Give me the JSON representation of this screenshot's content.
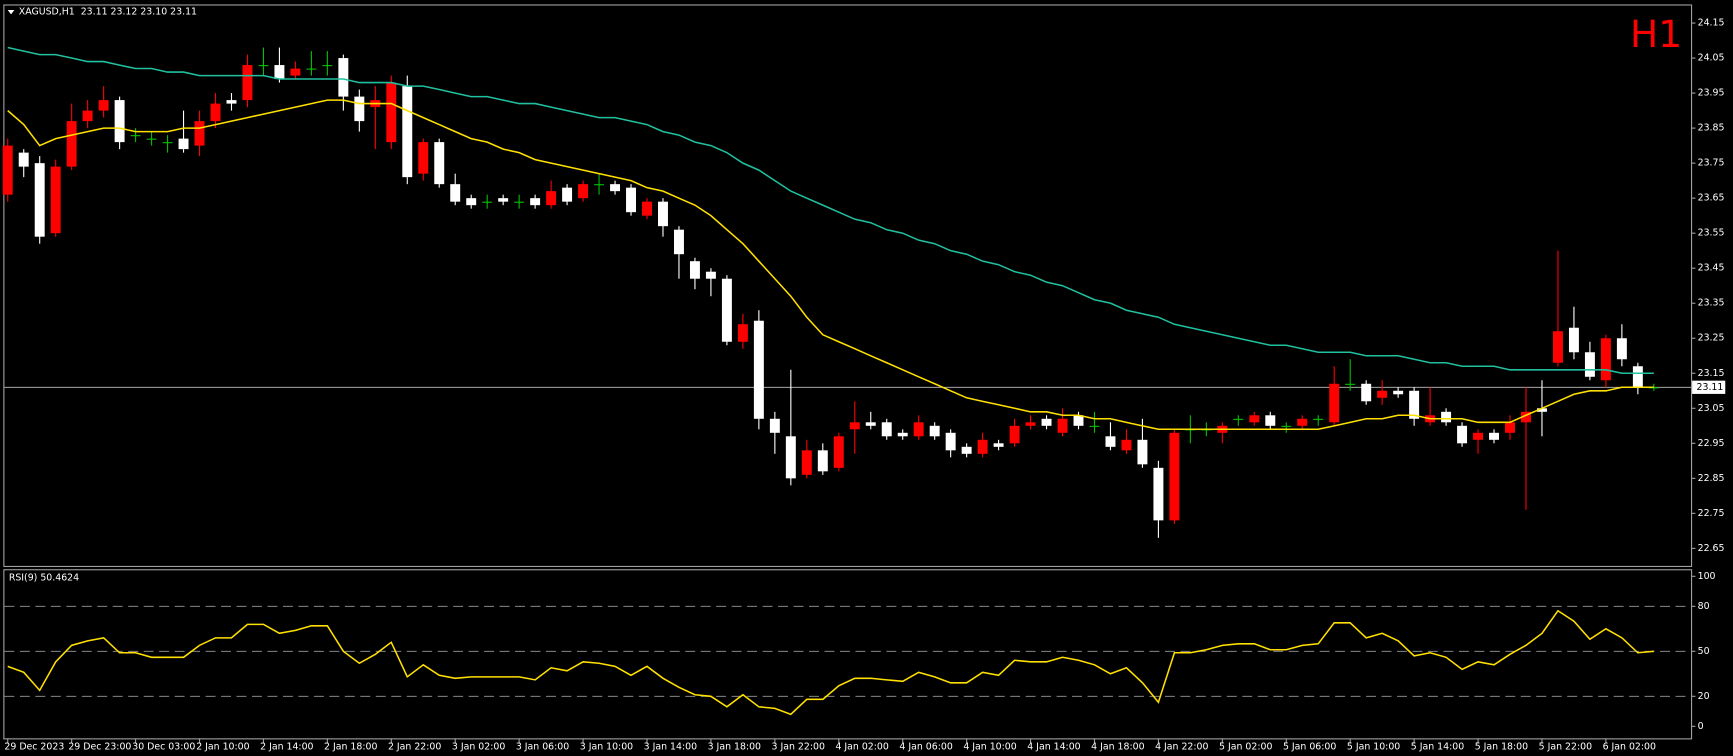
{
  "chart_data": [
    {
      "type": "candlestick",
      "title": "XAGUSD,H1  23.11 23.12 23.10 23.11",
      "label": "H1",
      "categories": [
        "29 Dec 2023",
        null,
        null,
        null,
        "29 Dec 23:00",
        null,
        null,
        null,
        "30 Dec 03:00",
        null,
        null,
        null,
        "2 Jan 10:00",
        null,
        null,
        null,
        "2 Jan 14:00",
        null,
        null,
        null,
        "2 Jan 18:00",
        null,
        null,
        null,
        "2 Jan 22:00",
        null,
        null,
        null,
        "3 Jan 02:00",
        null,
        null,
        null,
        "3 Jan 06:00",
        null,
        null,
        null,
        "3 Jan 10:00",
        null,
        null,
        null,
        "3 Jan 14:00",
        null,
        null,
        null,
        "3 Jan 18:00",
        null,
        null,
        null,
        "3 Jan 22:00",
        null,
        null,
        null,
        "4 Jan 02:00",
        null,
        null,
        null,
        "4 Jan 06:00",
        null,
        null,
        null,
        "4 Jan 10:00",
        null,
        null,
        null,
        "4 Jan 14:00",
        null,
        null,
        null,
        "4 Jan 18:00",
        null,
        null,
        null,
        "4 Jan 22:00",
        null,
        null,
        null,
        "5 Jan 02:00",
        null,
        null,
        null,
        "5 Jan 06:00",
        null,
        null,
        null,
        "5 Jan 10:00",
        null,
        null,
        null,
        "5 Jan 14:00",
        null,
        null,
        null,
        "5 Jan 18:00",
        null,
        null,
        null,
        "5 Jan 22:00",
        null,
        null,
        null,
        "6 Jan 02:00",
        null,
        null,
        null
      ],
      "open": [
        23.66,
        23.78,
        23.75,
        23.55,
        23.74,
        23.87,
        23.9,
        23.93,
        23.83,
        23.82,
        23.81,
        23.82,
        23.8,
        23.87,
        23.93,
        23.93,
        24.03,
        24.03,
        24.0,
        24.02,
        24.03,
        24.05,
        23.94,
        23.91,
        23.81,
        23.97,
        23.72,
        23.81,
        23.69,
        23.65,
        23.64,
        23.65,
        23.64,
        23.65,
        23.63,
        23.68,
        23.65,
        23.69,
        23.69,
        23.68,
        23.6,
        23.64,
        23.56,
        23.47,
        23.44,
        23.42,
        23.24,
        23.3,
        23.02,
        22.97,
        22.86,
        22.93,
        22.88,
        22.99,
        23.01,
        23.01,
        22.98,
        22.97,
        23.0,
        22.98,
        22.94,
        22.92,
        22.95,
        22.95,
        23.0,
        23.02,
        22.98,
        23.03,
        23.0,
        22.97,
        22.93,
        22.96,
        22.88,
        22.73,
        22.99,
        22.99,
        22.98,
        23.02,
        23.01,
        23.03,
        23.0,
        23.0,
        23.02,
        23.01,
        23.12,
        23.12,
        23.08,
        23.1,
        23.1,
        23.01,
        23.04,
        23.0,
        22.96,
        22.98,
        22.98,
        23.01,
        23.05,
        23.18,
        23.28,
        23.21,
        23.13,
        23.25,
        23.17,
        23.11
      ],
      "high": [
        23.82,
        23.79,
        23.77,
        23.76,
        23.92,
        23.93,
        23.97,
        23.94,
        23.85,
        23.84,
        23.83,
        23.9,
        23.9,
        23.95,
        23.95,
        24.06,
        24.08,
        24.08,
        24.04,
        24.07,
        24.07,
        24.06,
        23.96,
        23.97,
        24.0,
        24.0,
        23.82,
        23.82,
        23.72,
        23.66,
        23.66,
        23.66,
        23.66,
        23.66,
        23.7,
        23.69,
        23.7,
        23.72,
        23.7,
        23.69,
        23.65,
        23.65,
        23.57,
        23.48,
        23.45,
        23.43,
        23.32,
        23.33,
        23.04,
        23.16,
        22.96,
        22.95,
        22.98,
        23.07,
        23.04,
        23.02,
        22.99,
        23.03,
        23.01,
        22.99,
        22.95,
        22.98,
        22.96,
        23.02,
        23.03,
        23.03,
        23.05,
        23.04,
        23.04,
        23.01,
        22.99,
        23.02,
        22.9,
        22.99,
        23.03,
        23.01,
        23.01,
        23.03,
        23.04,
        23.04,
        23.01,
        23.03,
        23.03,
        23.17,
        23.19,
        23.13,
        23.13,
        23.11,
        23.11,
        23.11,
        23.05,
        23.01,
        22.99,
        22.99,
        23.03,
        23.11,
        23.13,
        23.5,
        23.34,
        23.24,
        23.26,
        23.29,
        23.18,
        23.12
      ],
      "low": [
        23.64,
        23.71,
        23.52,
        23.54,
        23.73,
        23.85,
        23.88,
        23.79,
        23.81,
        23.8,
        23.78,
        23.78,
        23.77,
        23.85,
        23.9,
        23.91,
        24.0,
        23.98,
        23.99,
        24.0,
        24.0,
        23.9,
        23.84,
        23.79,
        23.79,
        23.69,
        23.7,
        23.68,
        23.63,
        23.62,
        23.62,
        23.63,
        23.62,
        23.62,
        23.62,
        23.63,
        23.64,
        23.66,
        23.66,
        23.6,
        23.59,
        23.54,
        23.42,
        23.39,
        23.37,
        23.23,
        23.22,
        22.99,
        22.92,
        22.83,
        22.85,
        22.86,
        22.87,
        22.92,
        22.99,
        22.96,
        22.96,
        22.96,
        22.96,
        22.91,
        22.91,
        22.91,
        22.93,
        22.94,
        22.99,
        22.99,
        22.97,
        22.99,
        22.98,
        22.93,
        22.92,
        22.88,
        22.68,
        22.72,
        22.95,
        22.97,
        22.95,
        23.0,
        23.0,
        22.99,
        22.98,
        22.99,
        23.0,
        23.0,
        23.1,
        23.06,
        23.06,
        23.08,
        23.0,
        23.0,
        23.0,
        22.94,
        22.92,
        22.95,
        22.96,
        22.76,
        22.97,
        23.17,
        23.19,
        23.13,
        23.11,
        23.17,
        23.09,
        23.1
      ],
      "close": [
        23.8,
        23.74,
        23.54,
        23.74,
        23.87,
        23.9,
        23.93,
        23.81,
        23.83,
        23.82,
        23.81,
        23.79,
        23.87,
        23.92,
        23.92,
        24.03,
        24.03,
        23.99,
        24.02,
        24.02,
        24.03,
        23.94,
        23.87,
        23.93,
        23.98,
        23.71,
        23.81,
        23.69,
        23.64,
        23.63,
        23.64,
        23.64,
        23.64,
        23.63,
        23.67,
        23.64,
        23.69,
        23.69,
        23.67,
        23.61,
        23.64,
        23.57,
        23.49,
        23.42,
        23.42,
        23.24,
        23.29,
        23.02,
        22.98,
        22.85,
        22.93,
        22.87,
        22.97,
        23.01,
        23.0,
        22.97,
        22.97,
        23.01,
        22.97,
        22.93,
        22.92,
        22.96,
        22.94,
        23.0,
        23.01,
        23.0,
        23.02,
        23.0,
        23.0,
        22.94,
        22.96,
        22.89,
        22.73,
        22.98,
        22.99,
        22.99,
        23.0,
        23.02,
        23.03,
        23.0,
        23.0,
        23.02,
        23.02,
        23.12,
        23.12,
        23.07,
        23.1,
        23.09,
        23.02,
        23.03,
        23.01,
        22.95,
        22.98,
        22.96,
        23.01,
        23.04,
        23.04,
        23.27,
        23.21,
        23.14,
        23.25,
        23.19,
        23.11,
        23.11
      ],
      "bull_color": "#ff0000",
      "bear_color": "#ffffff",
      "doji_color": "#00c000",
      "series": [
        {
          "color": "#20c0a0",
          "values": [
            24.08,
            24.07,
            24.06,
            24.06,
            24.05,
            24.04,
            24.04,
            24.03,
            24.02,
            24.02,
            24.01,
            24.01,
            24.0,
            24.0,
            24.0,
            24.0,
            24.0,
            23.99,
            23.99,
            23.99,
            23.99,
            23.99,
            23.98,
            23.98,
            23.98,
            23.97,
            23.97,
            23.96,
            23.95,
            23.94,
            23.94,
            23.93,
            23.92,
            23.92,
            23.91,
            23.9,
            23.89,
            23.88,
            23.88,
            23.87,
            23.86,
            23.84,
            23.83,
            23.81,
            23.8,
            23.78,
            23.75,
            23.73,
            23.7,
            23.67,
            23.65,
            23.63,
            23.61,
            23.59,
            23.58,
            23.56,
            23.55,
            23.53,
            23.52,
            23.5,
            23.49,
            23.47,
            23.46,
            23.44,
            23.43,
            23.41,
            23.4,
            23.38,
            23.36,
            23.35,
            23.33,
            23.32,
            23.31,
            23.29,
            23.28,
            23.27,
            23.26,
            23.25,
            23.24,
            23.23,
            23.23,
            23.22,
            23.21,
            23.21,
            23.21,
            23.2,
            23.2,
            23.2,
            23.19,
            23.18,
            23.18,
            23.17,
            23.17,
            23.17,
            23.16,
            23.16,
            23.16,
            23.16,
            23.16,
            23.16,
            23.16,
            23.15,
            23.15,
            23.15
          ]
        },
        {
          "color": "#ffe000",
          "values": [
            23.9,
            23.86,
            23.8,
            23.82,
            23.83,
            23.84,
            23.85,
            23.85,
            23.84,
            23.84,
            23.84,
            23.85,
            23.85,
            23.86,
            23.87,
            23.88,
            23.89,
            23.9,
            23.91,
            23.92,
            23.93,
            23.93,
            23.92,
            23.92,
            23.92,
            23.9,
            23.88,
            23.86,
            23.84,
            23.82,
            23.81,
            23.79,
            23.78,
            23.76,
            23.75,
            23.74,
            23.73,
            23.72,
            23.71,
            23.7,
            23.68,
            23.67,
            23.65,
            23.63,
            23.6,
            23.56,
            23.52,
            23.47,
            23.42,
            23.37,
            23.31,
            23.26,
            23.24,
            23.22,
            23.2,
            23.18,
            23.16,
            23.14,
            23.12,
            23.1,
            23.08,
            23.07,
            23.06,
            23.05,
            23.04,
            23.04,
            23.03,
            23.03,
            23.02,
            23.02,
            23.01,
            23.0,
            22.99,
            22.99,
            22.99,
            22.99,
            22.99,
            22.99,
            22.99,
            22.99,
            22.99,
            22.99,
            22.99,
            23.0,
            23.01,
            23.02,
            23.02,
            23.03,
            23.03,
            23.02,
            23.02,
            23.02,
            23.01,
            23.01,
            23.01,
            23.03,
            23.05,
            23.07,
            23.09,
            23.1,
            23.1,
            23.11,
            23.11,
            23.11
          ]
        }
      ],
      "current_price": 23.11,
      "current_color": "#c0c0c0",
      "ylim": [
        22.6,
        24.2
      ],
      "yticks": [
        24.15,
        24.05,
        23.95,
        23.85,
        23.75,
        23.65,
        23.55,
        23.45,
        23.35,
        23.25,
        23.15,
        23.05,
        22.95,
        22.85,
        22.75,
        22.65
      ]
    },
    {
      "type": "line",
      "title": "RSI(9) 50.4624",
      "color": "#ffe000",
      "values": [
        40,
        36,
        24,
        43,
        54,
        57,
        59,
        49,
        49,
        46,
        46,
        46,
        54,
        59,
        59,
        68,
        68,
        62,
        64,
        67,
        67,
        50,
        42,
        48,
        56,
        33,
        41,
        34,
        32,
        33,
        33,
        33,
        33,
        31,
        39,
        37,
        43,
        42,
        40,
        34,
        40,
        32,
        26,
        21,
        20,
        13,
        21,
        13,
        12,
        8,
        18,
        18,
        27,
        32,
        32,
        31,
        30,
        36,
        33,
        29,
        29,
        36,
        34,
        44,
        43,
        43,
        46,
        44,
        41,
        35,
        39,
        29,
        16,
        49,
        49,
        51,
        54,
        55,
        55,
        51,
        51,
        54,
        55,
        69,
        69,
        59,
        62,
        57,
        47,
        49,
        46,
        38,
        43,
        41,
        48,
        54,
        62,
        77,
        70,
        58,
        65,
        59,
        49,
        50
      ],
      "ylim": [
        -8,
        104
      ],
      "yticks": [
        100,
        80,
        50,
        20,
        0
      ],
      "levels": [
        80,
        50,
        20
      ]
    }
  ]
}
